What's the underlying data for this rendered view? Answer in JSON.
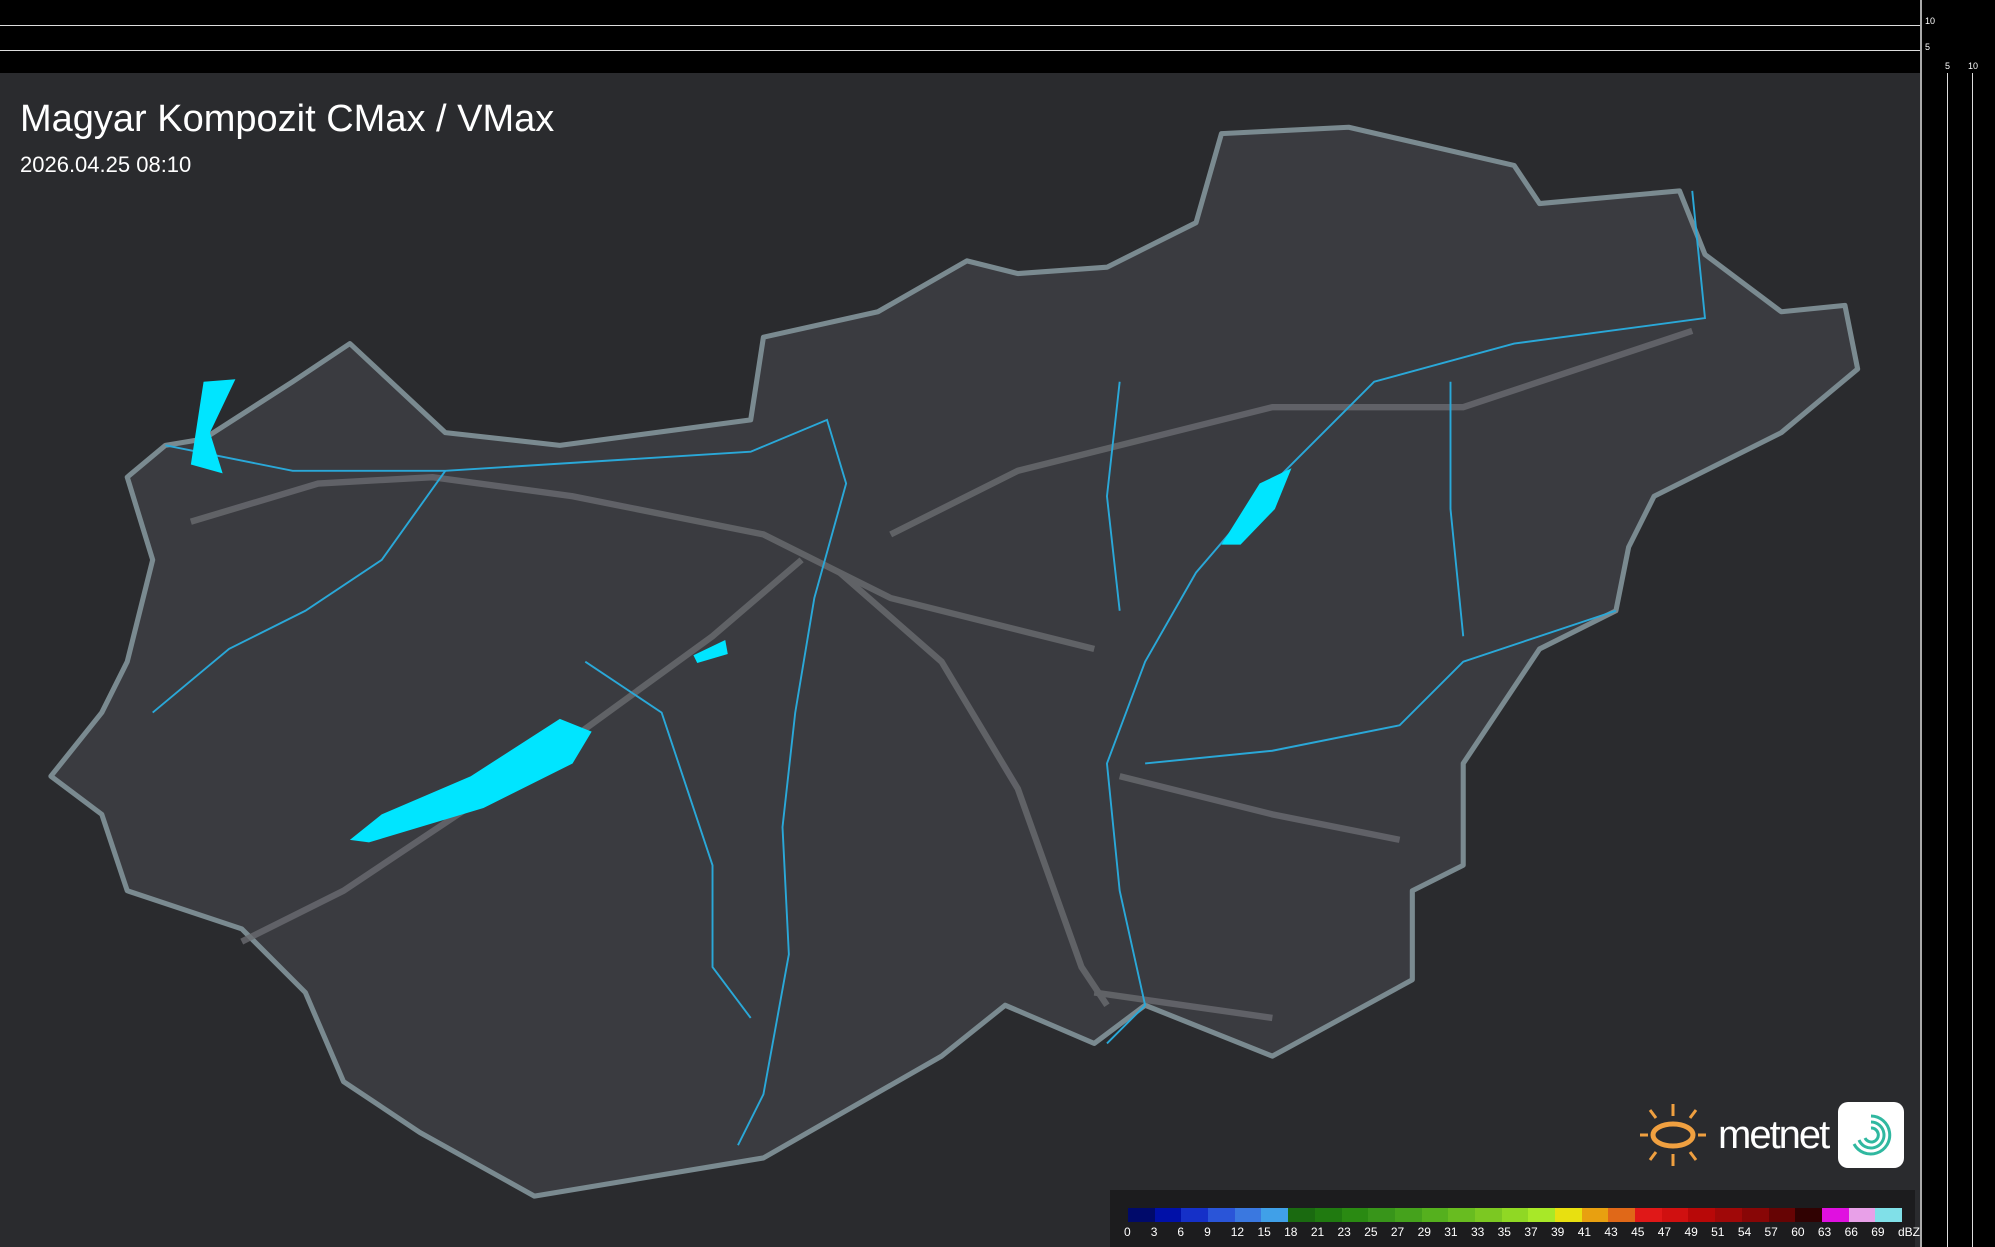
{
  "header": {
    "title": "Magyar Kompozit CMax / VMax",
    "timestamp": "2026.04.25 08:10"
  },
  "axes": {
    "vertical_ticks": [
      "10",
      "5"
    ],
    "horizontal_ticks": [
      "5",
      "10"
    ]
  },
  "legend": {
    "unit": "dBZ",
    "labels": [
      "0",
      "3",
      "6",
      "9",
      "12",
      "15",
      "18",
      "21",
      "23",
      "25",
      "27",
      "29",
      "31",
      "33",
      "35",
      "37",
      "39",
      "41",
      "43",
      "45",
      "47",
      "49",
      "51",
      "54",
      "57",
      "60",
      "63",
      "66",
      "69"
    ],
    "colors": [
      "#000a6a",
      "#0010a8",
      "#1530c8",
      "#2a55d8",
      "#3a78e0",
      "#40a0e8",
      "#1a6a10",
      "#207a10",
      "#2a8a12",
      "#38951a",
      "#45a21c",
      "#55b01e",
      "#68bc20",
      "#7cc822",
      "#90d824",
      "#a8e828",
      "#e8e010",
      "#e8a010",
      "#e06818",
      "#e01818",
      "#d01010",
      "#b80808",
      "#a00808",
      "#880606",
      "#660404",
      "#300202",
      "#e010e0",
      "#e8a0e8",
      "#80e0e8"
    ]
  },
  "logo": {
    "brand": "metnet",
    "icon": "metnet-swirl-icon",
    "accent": "#f0a040"
  },
  "map": {
    "lake_color": "#00e5ff",
    "river_color": "#2aa8d8",
    "border_color": "#7a8a90",
    "road_color": "#6a6c70"
  }
}
